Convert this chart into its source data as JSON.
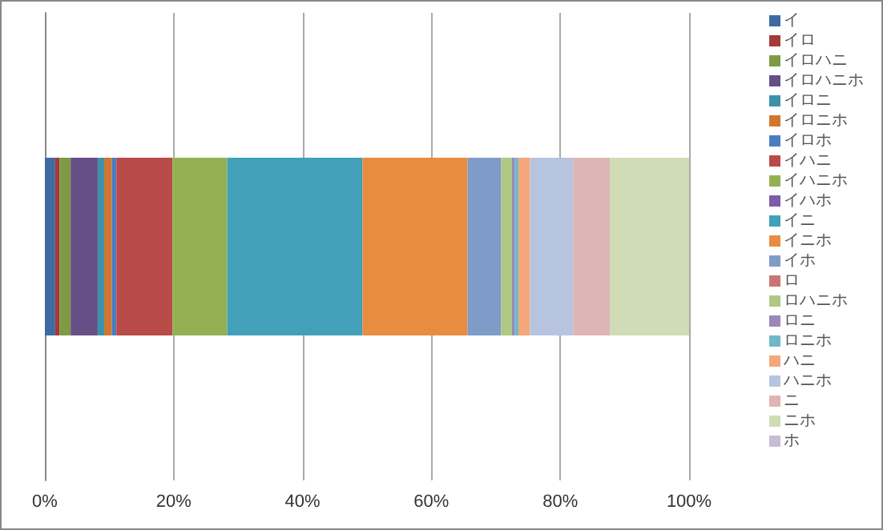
{
  "chart_data": {
    "type": "bar",
    "orientation": "horizontal",
    "stacked": true,
    "categories": [
      null
    ],
    "xlim": [
      0,
      100
    ],
    "xticks": [
      {
        "value": 0,
        "label": "0%"
      },
      {
        "value": 20,
        "label": "20%"
      },
      {
        "value": 40,
        "label": "40%"
      },
      {
        "value": 60,
        "label": "60%"
      },
      {
        "value": 80,
        "label": "80%"
      },
      {
        "value": 100,
        "label": "100%"
      }
    ],
    "grid": "x",
    "legend": "right",
    "series": [
      {
        "name": "イ",
        "color": "#3d6ba3",
        "values": [
          1.6
        ]
      },
      {
        "name": "イロ",
        "color": "#a33b38",
        "values": [
          0.7
        ]
      },
      {
        "name": "イロハニ",
        "color": "#7f9a45",
        "values": [
          1.7
        ]
      },
      {
        "name": "イロハニホ",
        "color": "#664e86",
        "values": [
          4.2
        ]
      },
      {
        "name": "イロニ",
        "color": "#3a93aa",
        "values": [
          1
        ]
      },
      {
        "name": "イロニホ",
        "color": "#d0762f",
        "values": [
          1.2
        ]
      },
      {
        "name": "イロホ",
        "color": "#4a7dc0",
        "values": [
          0.7
        ]
      },
      {
        "name": "イハニ",
        "color": "#b84a47",
        "values": [
          8.7
        ]
      },
      {
        "name": "イハニホ",
        "color": "#93b153",
        "values": [
          8.5
        ]
      },
      {
        "name": "イハホ",
        "color": "#7b5ea6",
        "values": [
          null
        ]
      },
      {
        "name": "イニ",
        "color": "#42a0b8",
        "values": [
          21
        ]
      },
      {
        "name": "イニホ",
        "color": "#e88c40",
        "values": [
          16.3
        ]
      },
      {
        "name": "イホ",
        "color": "#7f9bc8",
        "values": [
          5.2
        ]
      },
      {
        "name": "ロ",
        "color": "#c87674",
        "values": [
          null
        ]
      },
      {
        "name": "ロハニホ",
        "color": "#afc884",
        "values": [
          1.7
        ]
      },
      {
        "name": "ロニ",
        "color": "#9b88b8",
        "values": [
          0.4
        ]
      },
      {
        "name": "ロニホ",
        "color": "#72b7c9",
        "values": [
          0.6
        ]
      },
      {
        "name": "ハニ",
        "color": "#f3a77a",
        "values": [
          1.8
        ]
      },
      {
        "name": "ハニホ",
        "color": "#b6c4df",
        "values": [
          6.7
        ]
      },
      {
        "name": "ニ",
        "color": "#deb5b5",
        "values": [
          5.7
        ]
      },
      {
        "name": "ニホ",
        "color": "#cfdcb6",
        "values": [
          12.3
        ]
      },
      {
        "name": "ホ",
        "color": "#c5bcd6",
        "values": [
          null
        ]
      }
    ]
  }
}
